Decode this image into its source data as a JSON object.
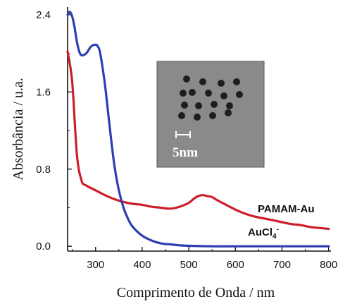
{
  "chart_data": {
    "type": "line",
    "xlabel": "Comprimento de Onda / nm",
    "ylabel": "Absorbância / u.a.",
    "xlim": [
      240,
      805
    ],
    "ylim": [
      -0.05,
      2.48
    ],
    "x_ticks": [
      300,
      400,
      500,
      600,
      700,
      800
    ],
    "y_ticks": [
      "0.0",
      "0.8",
      "1.6",
      "2.4"
    ],
    "y_tick_values": [
      0.0,
      0.8,
      1.6,
      2.4
    ],
    "grid": false,
    "series": [
      {
        "name": "PAMAM-Au",
        "color": "#cc1f2a",
        "x": [
          240,
          250,
          260,
          270,
          280,
          300,
          320,
          340,
          360,
          380,
          400,
          420,
          440,
          460,
          480,
          500,
          510,
          520,
          530,
          540,
          550,
          560,
          580,
          600,
          620,
          640,
          660,
          680,
          700,
          720,
          740,
          760,
          780,
          800
        ],
        "y": [
          2.02,
          1.7,
          0.95,
          0.68,
          0.63,
          0.58,
          0.53,
          0.49,
          0.46,
          0.44,
          0.43,
          0.41,
          0.4,
          0.39,
          0.41,
          0.45,
          0.49,
          0.52,
          0.53,
          0.52,
          0.51,
          0.48,
          0.43,
          0.38,
          0.34,
          0.31,
          0.29,
          0.27,
          0.25,
          0.23,
          0.22,
          0.2,
          0.19,
          0.18
        ]
      },
      {
        "name": "AuCl4-",
        "color": "#2d3fb0",
        "x": [
          240,
          245,
          250,
          255,
          260,
          265,
          270,
          280,
          290,
          300,
          305,
          310,
          320,
          330,
          340,
          350,
          360,
          370,
          380,
          400,
          420,
          440,
          460,
          480,
          500,
          550,
          600,
          700,
          800
        ],
        "y": [
          2.4,
          2.43,
          2.38,
          2.27,
          2.12,
          2.02,
          1.98,
          2.0,
          2.07,
          2.09,
          2.07,
          2.0,
          1.68,
          1.25,
          0.85,
          0.58,
          0.4,
          0.28,
          0.2,
          0.11,
          0.06,
          0.03,
          0.02,
          0.01,
          0.005,
          0.0,
          0.0,
          0.0,
          0.0
        ]
      }
    ],
    "annotations": [
      "PAMAM-Au",
      "AuCl4-"
    ]
  },
  "labels": {
    "series_a": "PAMAM-Au",
    "series_b_main": "AuCl",
    "series_b_sub": "4",
    "series_b_sup": "-"
  },
  "inset": {
    "scale_label": "5nm",
    "background": "#8a8a8a"
  }
}
